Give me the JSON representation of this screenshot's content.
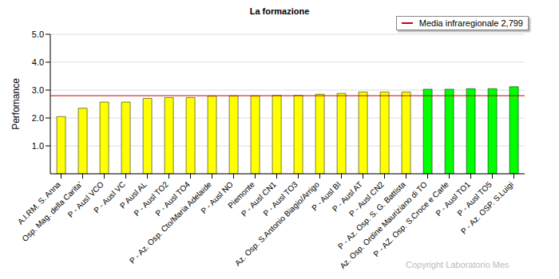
{
  "chart_data": {
    "type": "bar",
    "title": "La formazione",
    "y_label": "Perfomance",
    "categories": [
      "A.I.RM. S. Anna",
      "Osp. Mag. della Carita'",
      "P - Ausl VCO",
      "P - Ausl VC",
      "P Ausl  AL",
      "P - Ausl TO2",
      "P - Ausl TO4",
      "P - Az. Osp. Cto/Maria Adelaide",
      "P - Ausl  NO",
      "Piemonte",
      "P - Ausl CN1",
      "P - Ausl TO3",
      "Az. Osp. S.Antonio Biagio/Arrigo",
      "P - Ausl  BI",
      "P - Ausl  AT",
      "P - Ausl  CN2",
      "P - Az. Osp. S. G. Battista",
      "Az. Osp. Ordine Mauriziano di TO",
      "P - AZ. Osp. S.Croce e Carle",
      "P - Ausl TO1",
      "P - Ausl TO5",
      "P - Az. OSP. S.Luigi"
    ],
    "values": [
      2.05,
      2.35,
      2.57,
      2.57,
      2.7,
      2.73,
      2.73,
      2.78,
      2.79,
      2.79,
      2.81,
      2.81,
      2.85,
      2.88,
      2.93,
      2.93,
      2.93,
      3.03,
      3.03,
      3.05,
      3.05,
      3.12
    ],
    "colors": [
      "#ffff00",
      "#ffff00",
      "#ffff00",
      "#ffff00",
      "#ffff00",
      "#ffff00",
      "#ffff00",
      "#ffff00",
      "#ffff00",
      "#ffff00",
      "#ffff00",
      "#ffff00",
      "#ffff00",
      "#ffff00",
      "#ffff00",
      "#ffff00",
      "#ffff00",
      "#00ff00",
      "#00ff00",
      "#00ff00",
      "#00ff00",
      "#00ff00"
    ],
    "ylim": [
      0,
      5
    ],
    "yticks": [
      {
        "value": 1,
        "label": "1.0"
      },
      {
        "value": 2,
        "label": "2.0"
      },
      {
        "value": 3,
        "label": "3.0"
      },
      {
        "value": 4,
        "label": "4.0"
      },
      {
        "value": 5,
        "label": "5.0"
      }
    ],
    "grid": true,
    "legend": "top-right",
    "reference_line": {
      "name": "Media infraregionale 2,799",
      "value": 2.799,
      "color": "#cc0000"
    },
    "annotation": "Copyright Laboratorio Mes"
  }
}
